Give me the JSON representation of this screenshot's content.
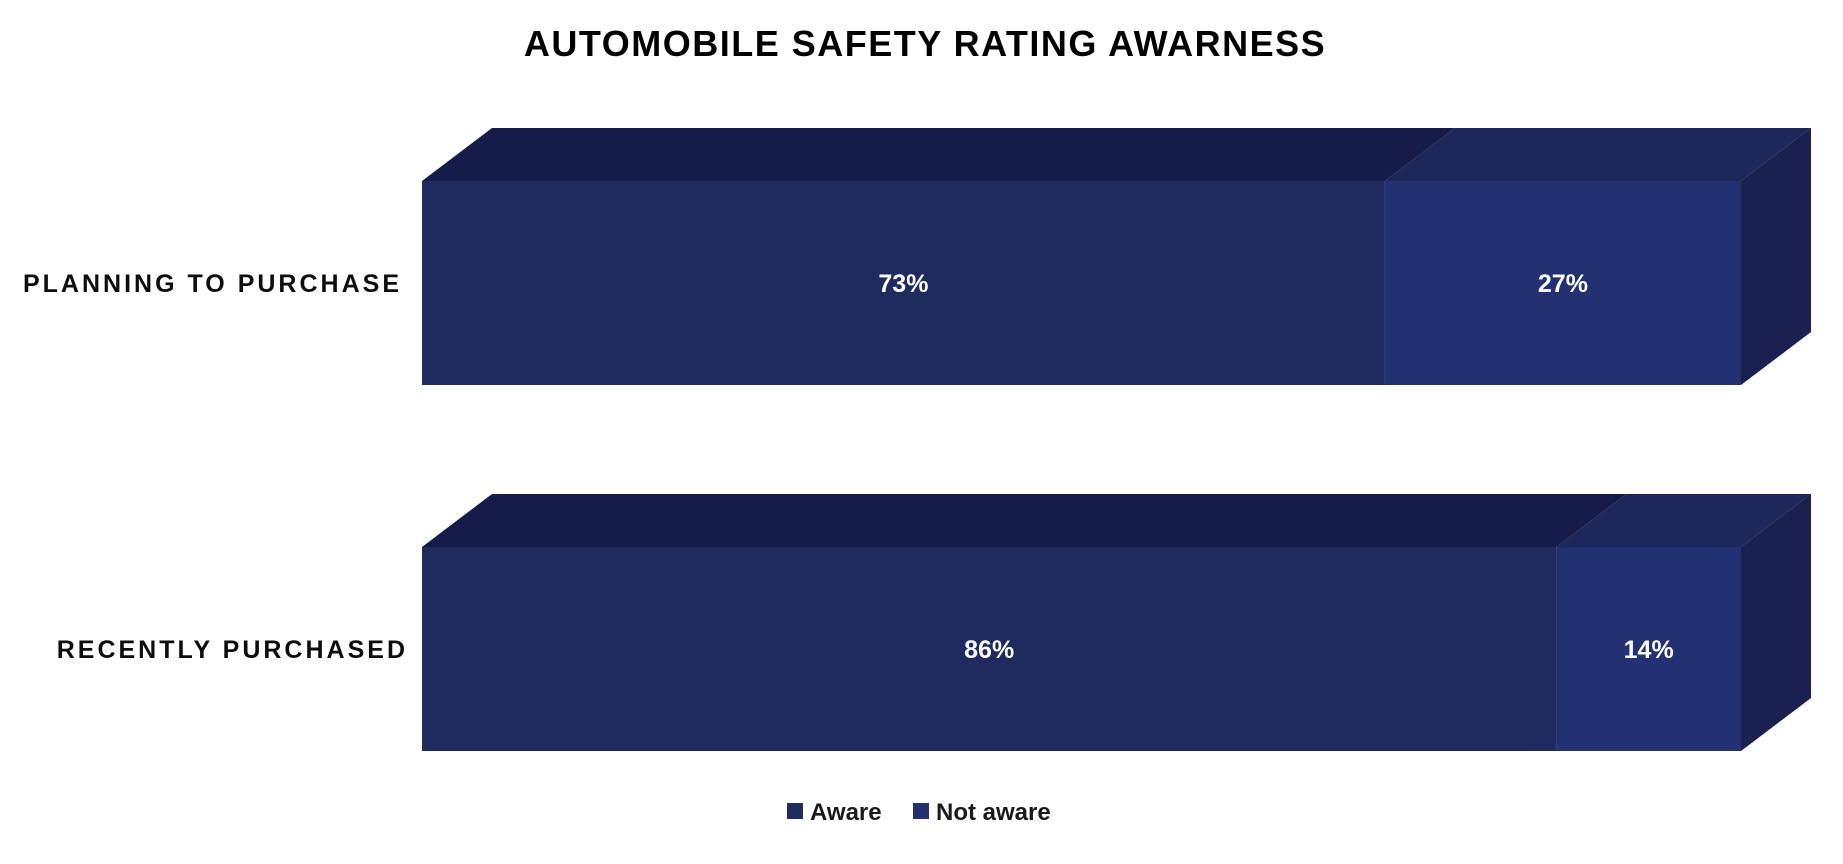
{
  "chart_data": {
    "type": "bar",
    "orientation": "horizontal",
    "stacked": "percent",
    "three_d": true,
    "title": "AUTOMOBILE SAFETY RATING AWARNESS",
    "categories": [
      "PLANNING TO PURCHASE",
      "RECENTLY PURCHASED"
    ],
    "series": [
      {
        "name": "Aware",
        "values": [
          73,
          86
        ],
        "labels": [
          "73%",
          "86%"
        ]
      },
      {
        "name": "Not aware",
        "values": [
          27,
          14
        ],
        "labels": [
          "27%",
          "14%"
        ]
      }
    ],
    "xlim": [
      0,
      100
    ],
    "grid": false,
    "legend_position": "bottom",
    "colors": {
      "series": [
        "#1f2a5e",
        "#233172"
      ],
      "top_faces": [
        "#151c4a",
        "#1d275a"
      ],
      "side_face": "#192150",
      "data_label": "#ffffff",
      "text": "#0d0d0d"
    }
  }
}
